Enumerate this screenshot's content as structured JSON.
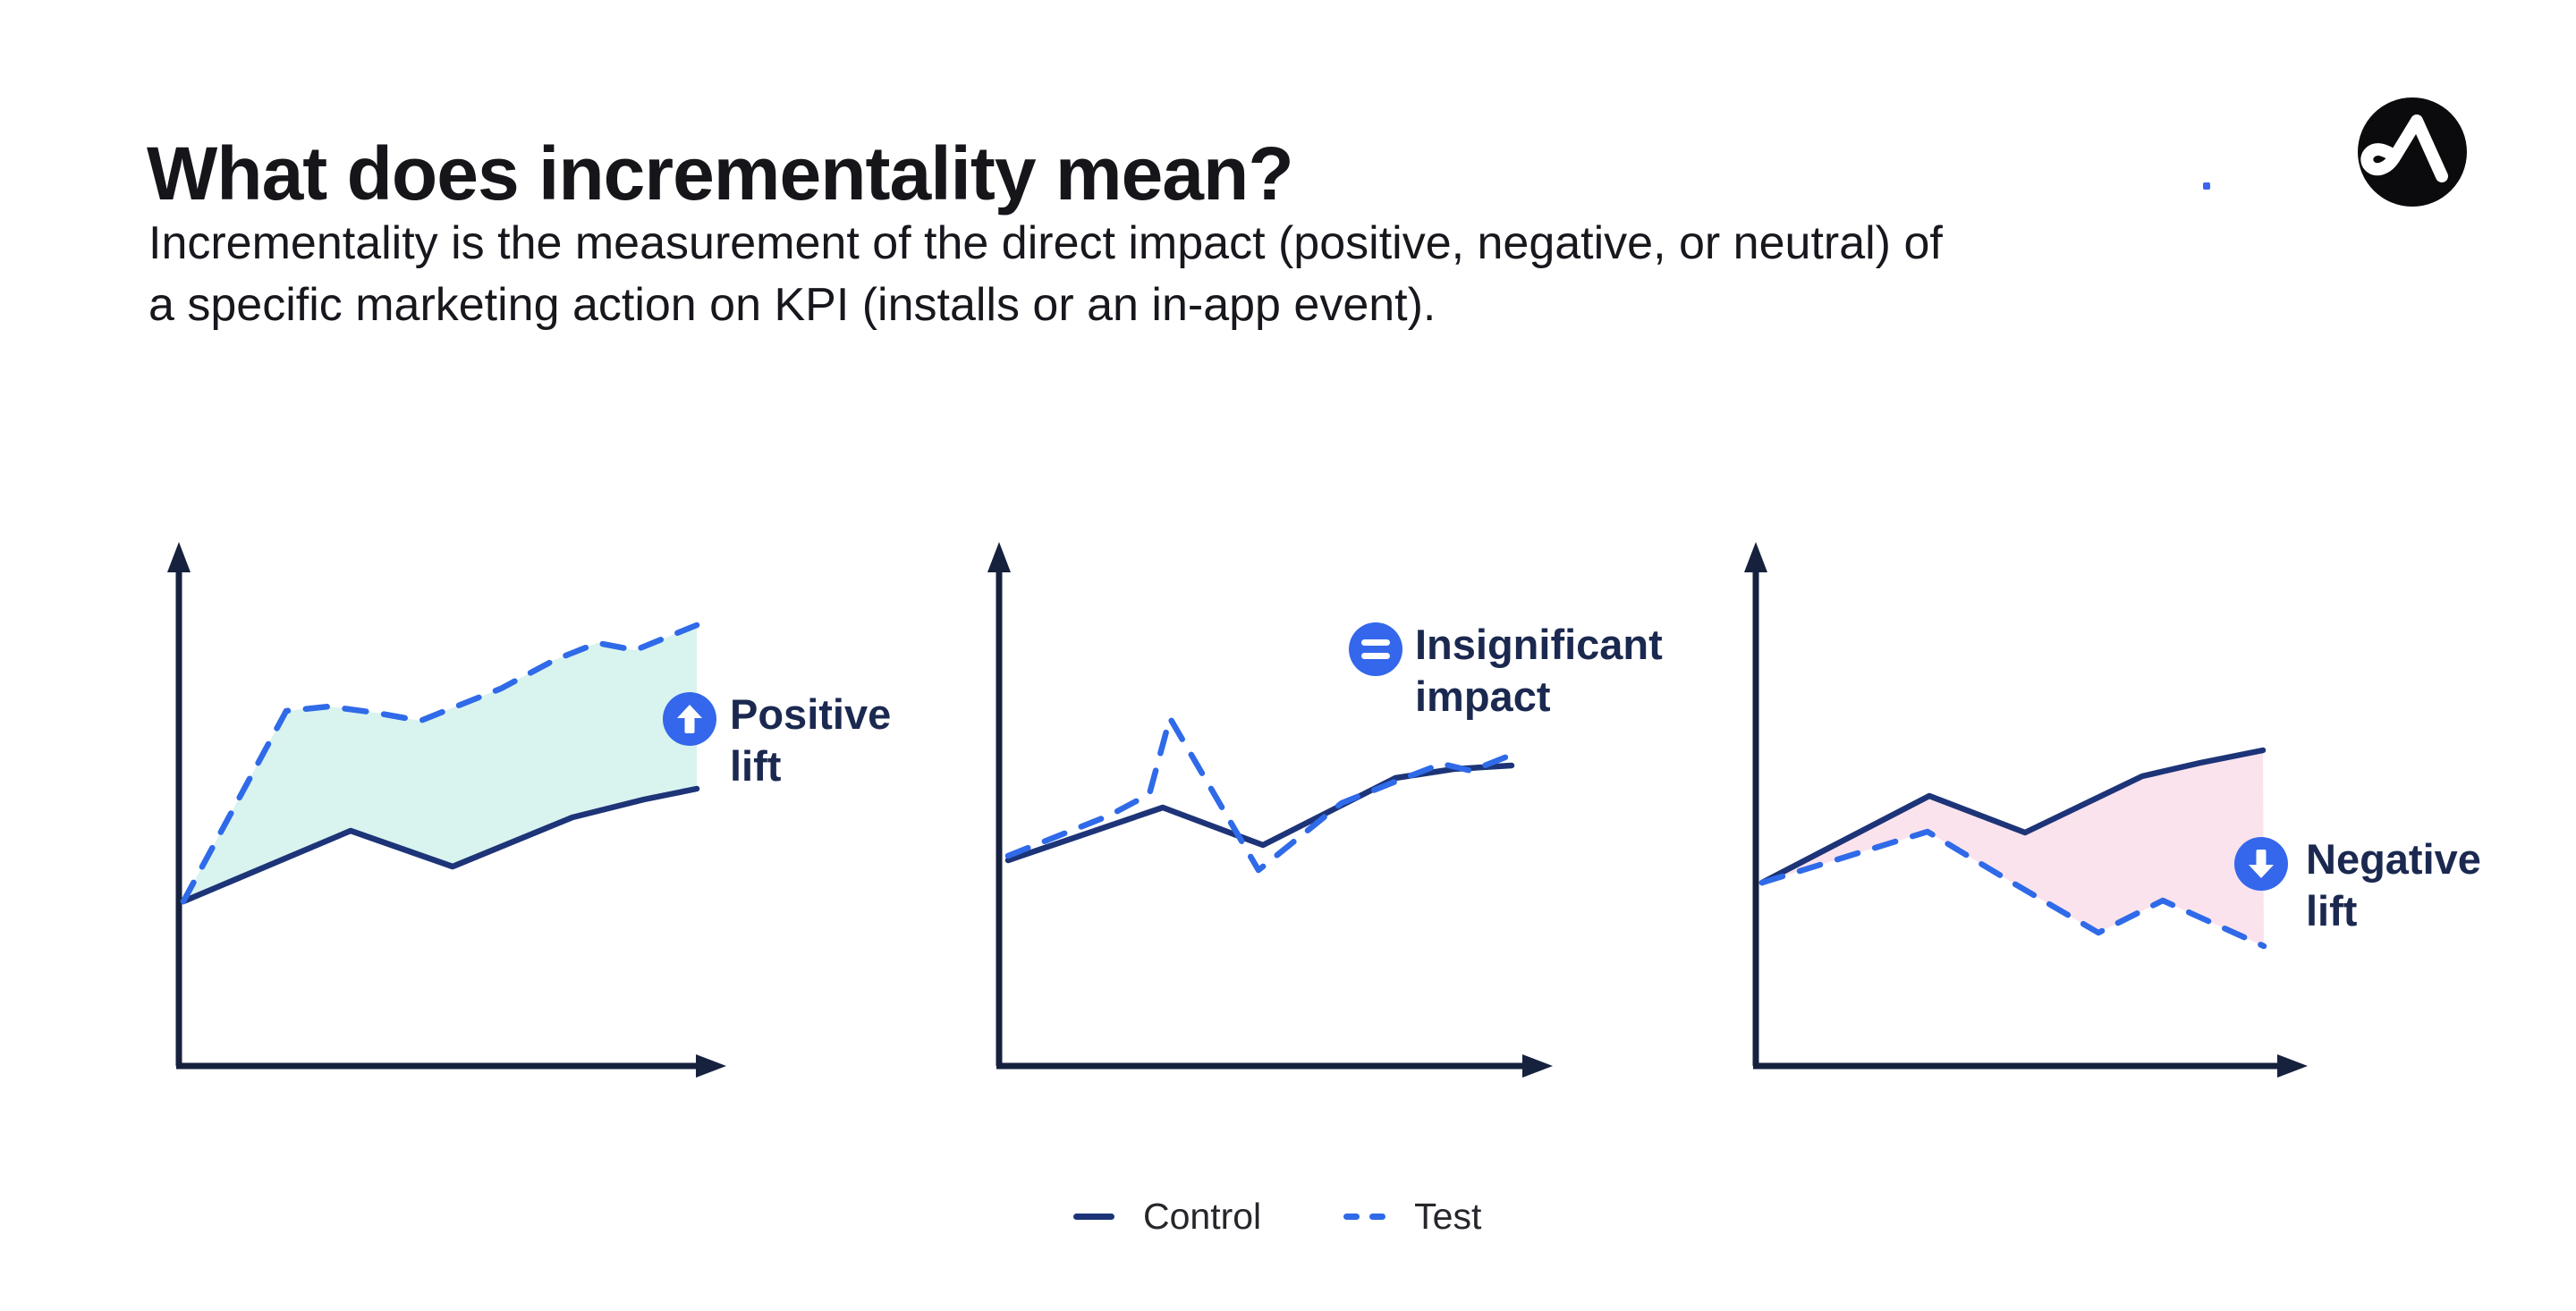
{
  "header": {
    "title": "What does incrementality mean?",
    "subtitle_lines": [
      "Incrementality is the measurement of the direct impact (positive, negative, or neutral) of",
      "a specific marketing action on KPI (installs or an in-app event)."
    ]
  },
  "logo": {
    "icon": "appsflyer-logo"
  },
  "decor": {
    "blue_dot": true
  },
  "colors": {
    "control_navy": "#1d3478",
    "test_blue": "#2f6ae8",
    "axis_navy": "#16213e",
    "badge_blue": "#3467ec",
    "mint_fill": "#d9f3ef",
    "pink_fill": "#fae3ec",
    "label_navy": "#1b2950",
    "title_black": "#15151a",
    "legend_text": "#26262b"
  },
  "legend": {
    "control_label": "Control",
    "test_label": "Test"
  },
  "charts": [
    {
      "name": "positive-lift",
      "type": "line",
      "label_lines": [
        "Positive",
        "lift"
      ],
      "badge_icon": "arrow-up-icon",
      "band_color": "#d9f3ef",
      "axis": {
        "origin": [
          200,
          1192
        ],
        "y_top": 606,
        "x_end": 812
      },
      "series": {
        "control": [
          [
            205,
            1008
          ],
          [
            392,
            929
          ],
          [
            506,
            969
          ],
          [
            640,
            914
          ],
          [
            720,
            894
          ],
          [
            779,
            882
          ]
        ],
        "test": [
          [
            205,
            1008
          ],
          [
            320,
            795
          ],
          [
            368,
            790
          ],
          [
            420,
            797
          ],
          [
            470,
            806
          ],
          [
            560,
            770
          ],
          [
            620,
            738
          ],
          [
            668,
            719
          ],
          [
            710,
            727
          ],
          [
            779,
            699
          ]
        ]
      }
    },
    {
      "name": "insignificant-impact",
      "type": "line",
      "label_lines": [
        "Insignificant",
        "impact"
      ],
      "badge_icon": "equals-icon",
      "band_color": null,
      "axis": {
        "origin": [
          1117,
          1192
        ],
        "y_top": 606,
        "x_end": 1736
      },
      "series": {
        "control": [
          [
            1127,
            962
          ],
          [
            1300,
            903
          ],
          [
            1412,
            945
          ],
          [
            1560,
            870
          ],
          [
            1625,
            860
          ],
          [
            1690,
            856
          ]
        ],
        "test": [
          [
            1127,
            957
          ],
          [
            1240,
            912
          ],
          [
            1285,
            888
          ],
          [
            1308,
            803
          ],
          [
            1407,
            973
          ],
          [
            1500,
            898
          ],
          [
            1560,
            874
          ],
          [
            1612,
            854
          ],
          [
            1645,
            862
          ],
          [
            1690,
            844
          ]
        ]
      }
    },
    {
      "name": "negative-lift",
      "type": "line",
      "label_lines": [
        "Negative",
        "lift"
      ],
      "badge_icon": "arrow-down-icon",
      "band_color": "#fae3ec",
      "axis": {
        "origin": [
          1963,
          1192
        ],
        "y_top": 606,
        "x_end": 2580
      },
      "series": {
        "control": [
          [
            1970,
            987
          ],
          [
            2157,
            890
          ],
          [
            2264,
            931
          ],
          [
            2395,
            868
          ],
          [
            2460,
            853
          ],
          [
            2530,
            839
          ]
        ],
        "test": [
          [
            1970,
            987
          ],
          [
            2155,
            930
          ],
          [
            2250,
            987
          ],
          [
            2346,
            1043
          ],
          [
            2418,
            1007
          ],
          [
            2531,
            1058
          ]
        ]
      }
    }
  ]
}
